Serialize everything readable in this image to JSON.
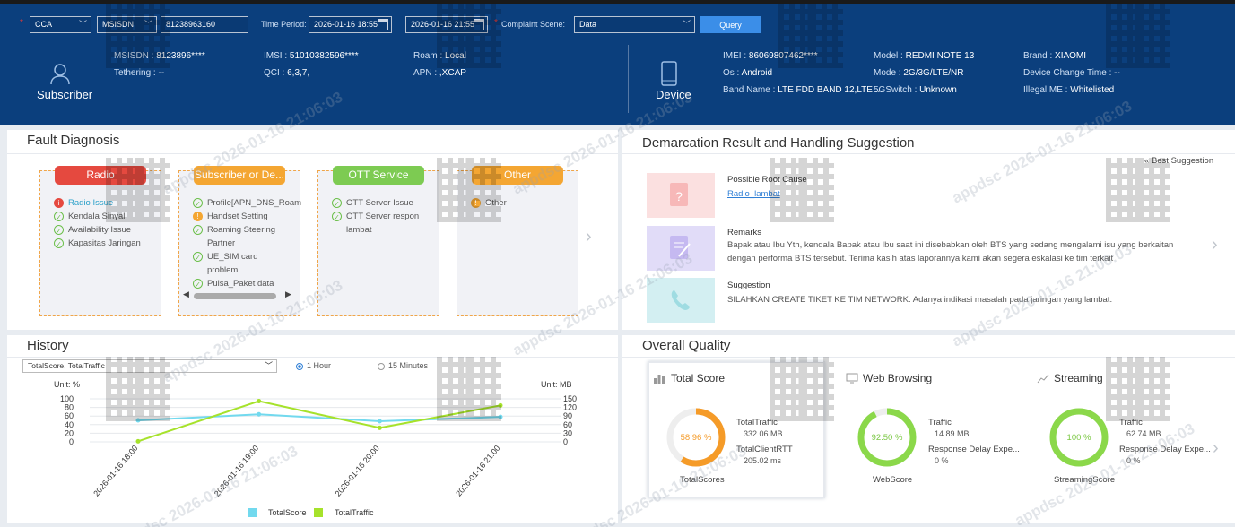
{
  "filters": {
    "source": "CCA",
    "id_type": "MSISDN",
    "msisdn_value": "81238963160",
    "time_period_label": "Time Period:",
    "start_time": "2026-01-16 18:55",
    "end_time": "2026-01-16 21:55",
    "complaint_label": "Complaint Scene:",
    "complaint_value": "Data",
    "query_label": "Query"
  },
  "subscriber": {
    "caption": "Subscriber",
    "msisdn_label": "MSISDN",
    "msisdn": "8123896****",
    "tethering_label": "Tethering",
    "tethering": "--",
    "imsi_label": "IMSI",
    "imsi": "51010382596****",
    "qci_label": "QCI",
    "qci": "6,3,7,",
    "roam_label": "Roam",
    "roam": "Local",
    "apn_label": "APN",
    "apn": ",XCAP"
  },
  "device": {
    "caption": "Device",
    "imei_label": "IMEI",
    "imei": "86069807462****",
    "os_label": "Os",
    "os": "Android",
    "band_label": "Band Name",
    "band": "LTE FDD BAND 12,LTE ...",
    "model_label": "Model",
    "model": "REDMI NOTE 13",
    "mode_label": "Mode",
    "mode": "2G/3G/LTE/NR",
    "switch_label": "5GSwitch",
    "switch": "Unknown",
    "brand_label": "Brand",
    "brand": "XIAOMI",
    "dct_label": "Device Change Time",
    "dct": "--",
    "illegal_label": "Illegal ME",
    "illegal": "Whitelisted"
  },
  "fault": {
    "title": "Fault Diagnosis",
    "categories": [
      {
        "name": "Radio",
        "color": "#e5493f",
        "items": [
          {
            "text": "Radio Issue",
            "status": "err",
            "link": true
          },
          {
            "text": "Kendala Sinyal",
            "status": "ok"
          },
          {
            "text": "Availability Issue",
            "status": "ok"
          },
          {
            "text": "Kapasitas Jaringan",
            "status": "ok"
          }
        ]
      },
      {
        "name": "Subscriber or De...",
        "color": "#f4a632",
        "items": [
          {
            "text": "Profile[APN_DNS_Roam",
            "status": "ok"
          },
          {
            "text": "Handset Setting",
            "status": "warn"
          },
          {
            "text": "Roaming Steering",
            "status": "ok"
          },
          {
            "text": "Partner",
            "status": "none"
          },
          {
            "text": "UE_SIM card",
            "status": "ok"
          },
          {
            "text": "problem",
            "status": "none"
          },
          {
            "text": "Pulsa_Paket data",
            "status": "ok"
          }
        ]
      },
      {
        "name": "OTT Service",
        "color": "#7dcb52",
        "items": [
          {
            "text": "OTT Server Issue",
            "status": "ok"
          },
          {
            "text": "OTT Server respon",
            "status": "ok"
          },
          {
            "text": "lambat",
            "status": "none"
          }
        ]
      },
      {
        "name": "Other",
        "color": "#f4a632",
        "items": [
          {
            "text": "Other",
            "status": "warn"
          }
        ]
      }
    ]
  },
  "demarcation": {
    "title": "Demarcation Result and Handling Suggestion",
    "best_label": "Best Suggestion",
    "root_title": "Possible Root Cause",
    "root_link": "Radio_lambat",
    "remarks_title": "Remarks",
    "remarks_text": "Bapak atau Ibu Yth, kendala Bapak atau Ibu saat ini disebabkan oleh BTS yang sedang mengalami isu yang berkaitan dengan performa BTS tersebut. Terima kasih atas laporannya kami akan segera eskalasi ke tim terkait",
    "suggestion_title": "Suggestion",
    "suggestion_text": "SILAHKAN CREATE TIKET KE TIM NETWORK. Adanya indikasi masalah pada jaringan yang lambat."
  },
  "history": {
    "title": "History",
    "select": "TotalScore, TotalTraffic",
    "radio_hour": "1 Hour",
    "radio_15": "15 Minutes"
  },
  "chart_data": {
    "type": "line",
    "x": [
      "2026-01-16 18:00",
      "2026-01-16 19:00",
      "2026-01-16 20:00",
      "2026-01-16 21:00"
    ],
    "series": [
      {
        "name": "TotalScore",
        "axis": "left",
        "color": "#72d9ee",
        "values": [
          50,
          64,
          48,
          58
        ]
      },
      {
        "name": "TotalTraffic",
        "axis": "right",
        "color": "#a6e22b",
        "values": [
          2,
          142,
          49,
          127
        ]
      }
    ],
    "ylabel_left": "Unit: %",
    "ylabel_right": "Unit: MB",
    "ylim_left": [
      0,
      100
    ],
    "ylim_right": [
      0,
      150
    ],
    "yticks_left": [
      0,
      20,
      40,
      60,
      80,
      100
    ],
    "yticks_right": [
      0,
      30,
      60,
      90,
      120,
      150
    ],
    "grid": true,
    "legend": "bottom"
  },
  "quality": {
    "title": "Overall Quality",
    "total": {
      "title": "Total Score",
      "value": "58.96 %",
      "pct": 58.96,
      "traffic_label": "TotalTraffic",
      "traffic": "332.06 MB",
      "rtt_label": "TotalClientRTT",
      "rtt": "205.02 ms",
      "caption": "TotalScores"
    },
    "web": {
      "title": "Web Browsing",
      "value": "92.50 %",
      "pct": 92.5,
      "traffic_label": "Traffic",
      "traffic": "14.89 MB",
      "delay_label": "Response Delay Expe...",
      "delay": "0 %",
      "caption": "WebScore"
    },
    "stream": {
      "title": "Streaming",
      "value": "100 %",
      "pct": 100,
      "traffic_label": "Traffic",
      "traffic": "62.74 MB",
      "delay_label": "Response Delay Expe...",
      "delay": "0 %",
      "caption": "StreamingScore"
    },
    "colors": {
      "orange": "#f59b28",
      "green": "#8bd84a",
      "ring": "#eeeeee"
    }
  },
  "watermark": "appdsc 2026-01-16 21:06:03"
}
